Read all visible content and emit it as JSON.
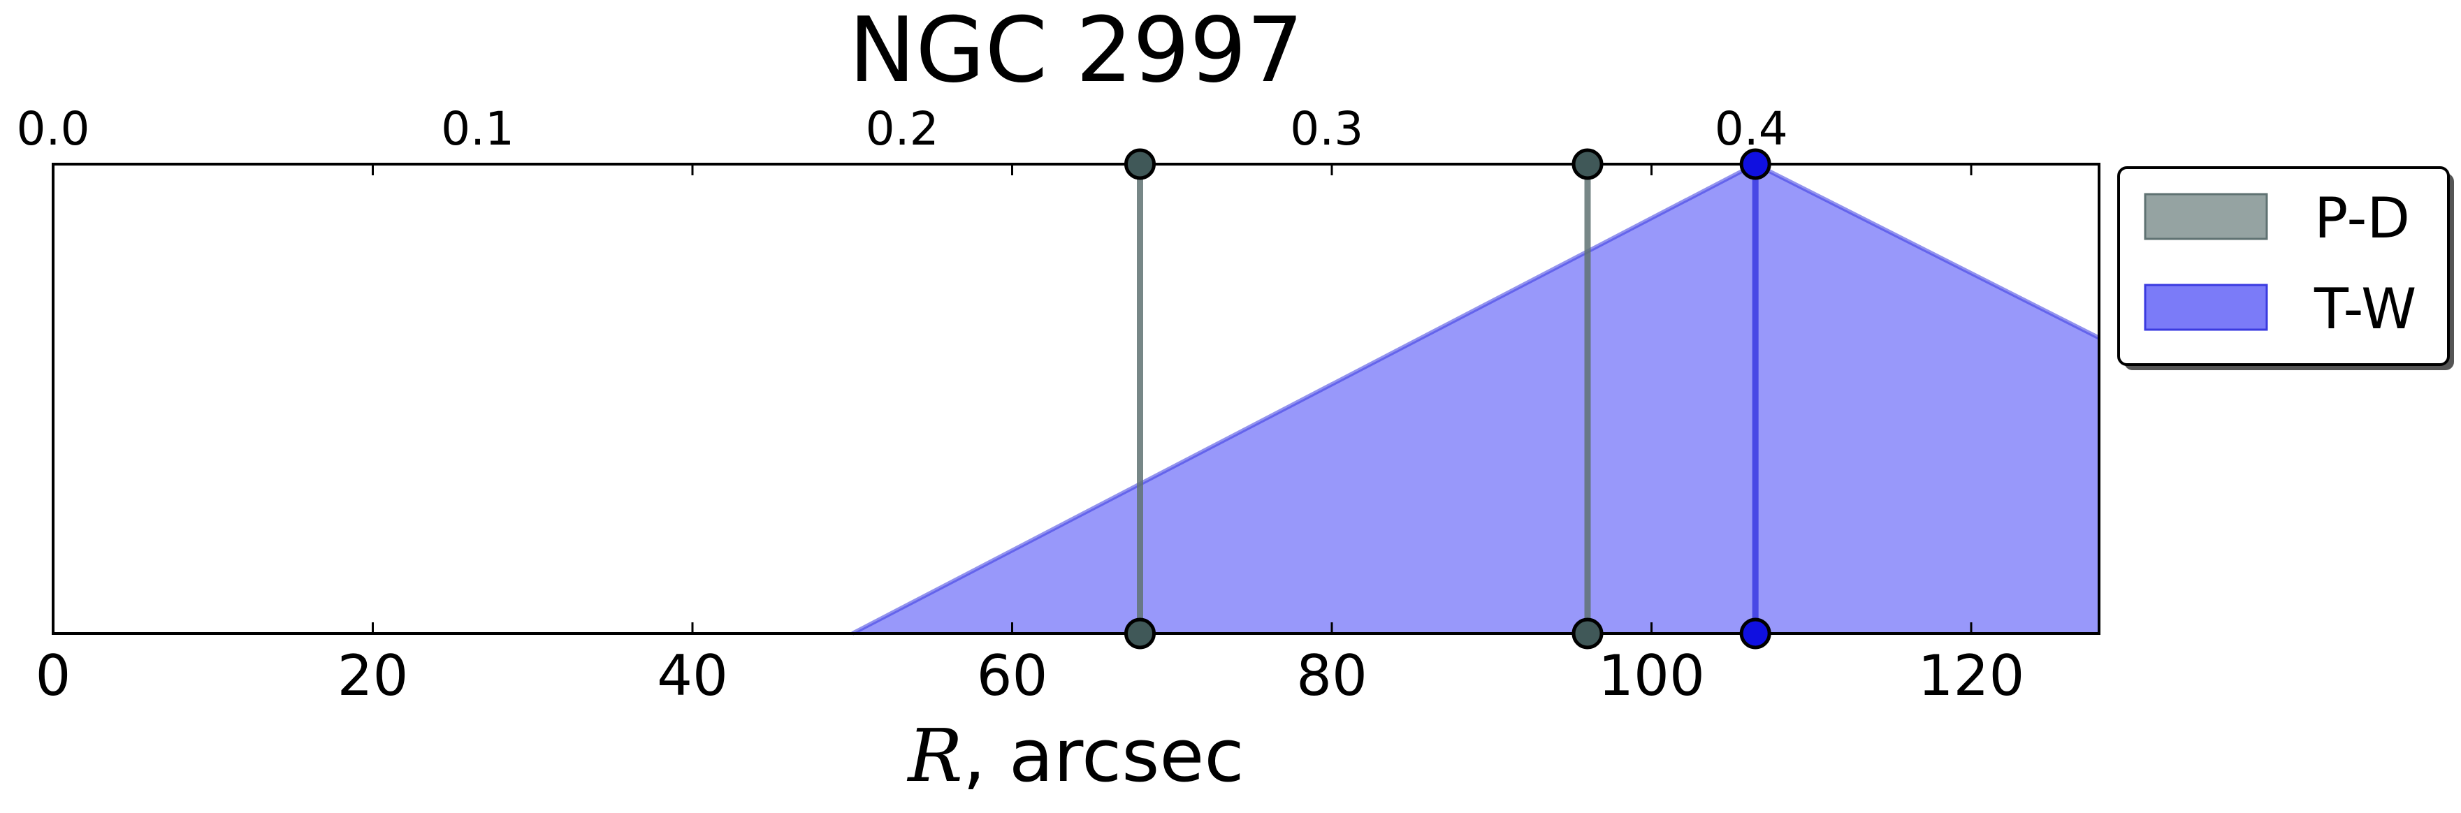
{
  "chart_data": {
    "type": "area",
    "title": "NGC 2997",
    "xlabel_symbol": "R",
    "xlabel_rest": ", arcsec",
    "xlim": [
      0,
      128
    ],
    "ylim": [
      0,
      1
    ],
    "xticks": [
      0,
      20,
      40,
      60,
      80,
      100,
      120
    ],
    "xtick_labels": [
      "0",
      "20",
      "40",
      "60",
      "80",
      "100",
      "120"
    ],
    "top_axis": {
      "scale_per_arcsec": 0.003765,
      "ticks": [
        0.0,
        0.1,
        0.2,
        0.3,
        0.4
      ],
      "tick_labels": [
        "0.0",
        "0.1",
        "0.2",
        "0.3",
        "0.4"
      ]
    },
    "grid": false,
    "legend_position": "outside-right-top",
    "series": [
      {
        "name": "P-D",
        "kind": "vertical-lines",
        "color": "#5f7272",
        "legend_color": "#95a3a2",
        "x": [
          68,
          96
        ]
      },
      {
        "name": "T-W",
        "kind": "filled-area",
        "color": "#3a3ae0",
        "fill_color": "#7b7bf8",
        "legend_color": "#7b7bf8",
        "marker_x": [
          106.5
        ],
        "x": [
          50,
          106.5,
          128
        ],
        "y": [
          0,
          1,
          0.63
        ]
      }
    ]
  }
}
